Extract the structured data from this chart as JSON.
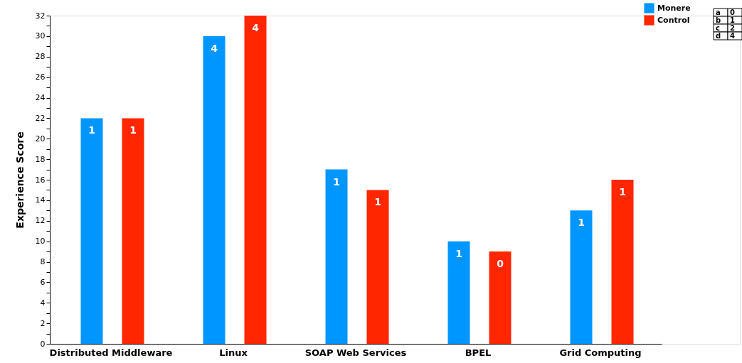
{
  "chart_data": {
    "type": "bar",
    "ylabel": "Experience Score",
    "categories": [
      "Distributed Middleware",
      "Linux",
      "SOAP Web Services",
      "BPEL",
      "Grid Computing"
    ],
    "series": [
      {
        "name": "Monere",
        "color": "#0096ff",
        "values": [
          22,
          30,
          17,
          10,
          13
        ]
      },
      {
        "name": "Control",
        "color": "#ff2600",
        "values": [
          22,
          32,
          15,
          9,
          16
        ]
      }
    ],
    "ylim": [
      0,
      32
    ],
    "yticks": [
      0,
      {
        "value": 1,
        "label": null
      },
      2,
      {
        "value": 3,
        "label": null
      },
      4,
      {
        "value": 5,
        "label": null
      },
      6,
      {
        "value": 7,
        "label": null
      },
      8,
      {
        "value": 9,
        "label": null
      },
      10,
      {
        "value": 11,
        "label": null
      },
      12,
      {
        "value": 13,
        "label": null
      },
      14,
      {
        "value": 15,
        "label": null
      },
      16,
      {
        "value": 17,
        "label": null
      },
      18,
      {
        "value": 19,
        "label": null
      },
      20,
      {
        "value": 21,
        "label": null
      },
      22,
      {
        "value": 23,
        "label": null
      },
      24,
      {
        "value": 25,
        "label": null
      },
      26,
      {
        "value": 27,
        "label": null
      },
      28,
      {
        "value": 29,
        "label": null
      },
      30,
      {
        "value": 31,
        "label": null
      },
      32
    ],
    "grid": false,
    "legend": "top right",
    "annotations": [
      "1",
      "4",
      "1",
      "1",
      "1",
      "1",
      "4",
      "1",
      "0",
      "1",
      "a",
      "0",
      "b",
      "1",
      "c",
      "2",
      "d",
      "4"
    ]
  }
}
